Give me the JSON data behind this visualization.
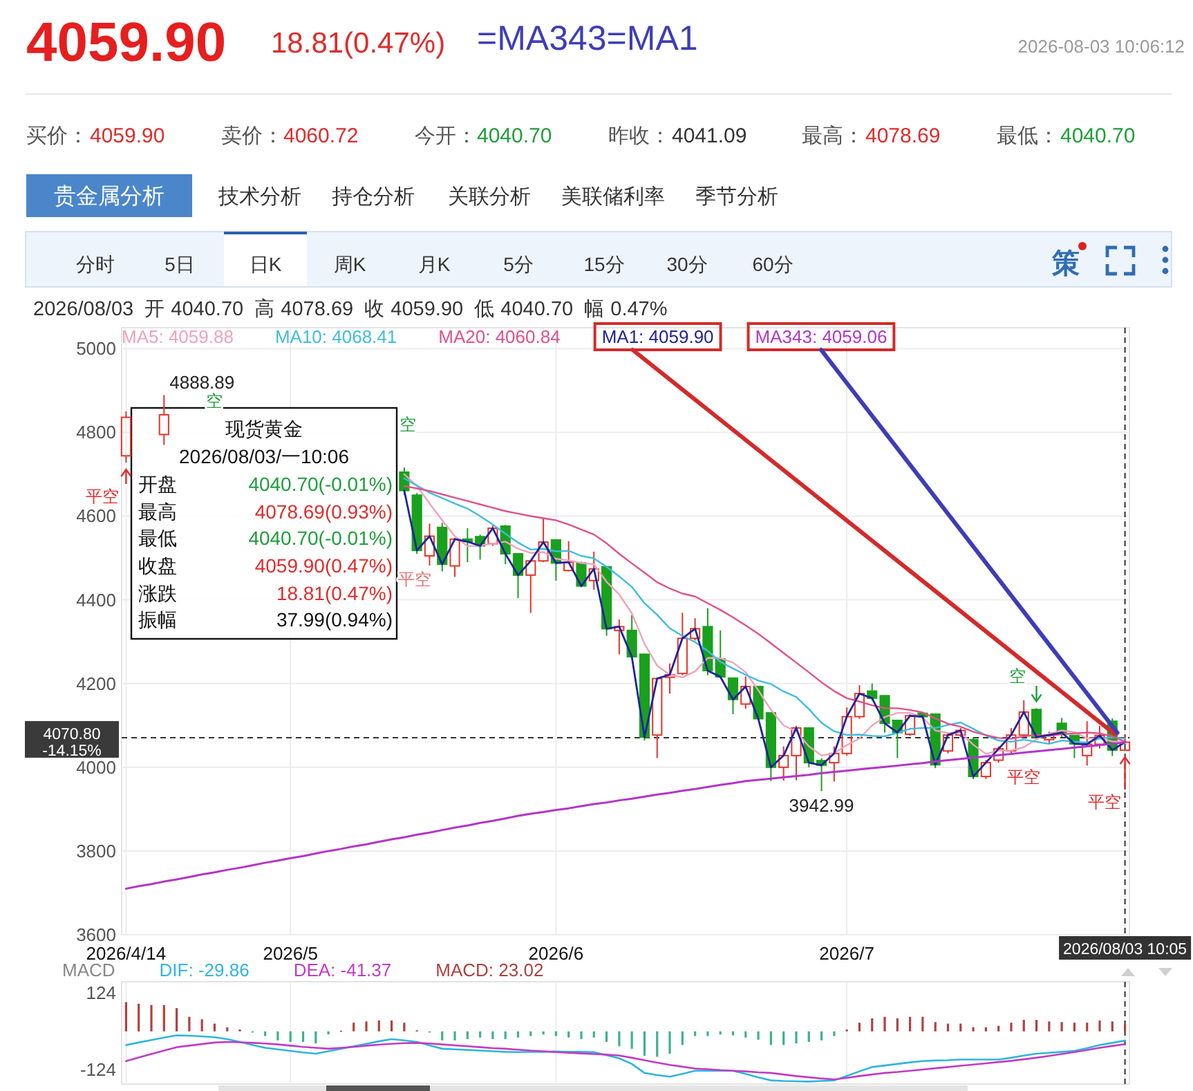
{
  "chart_data": [
    {
      "type": "candlestick",
      "title": "4059.90",
      "subtitle": "18.81(0.47%)",
      "categories": [
        "2026/4/14",
        null,
        null,
        null,
        null,
        null,
        null,
        null,
        null,
        null,
        null,
        null,
        null,
        "2026/5",
        null,
        null,
        null,
        null,
        null,
        null,
        null,
        null,
        null,
        null,
        null,
        null,
        null,
        null,
        null,
        null,
        null,
        null,
        null,
        null,
        "2026/6",
        null,
        null,
        null,
        null,
        null,
        null,
        null,
        null,
        null,
        null,
        null,
        null,
        null,
        null,
        null,
        null,
        null,
        null,
        null,
        null,
        null,
        null,
        "2026/7",
        null,
        null,
        null,
        null,
        null,
        null,
        null,
        null,
        null,
        null,
        null,
        null,
        null,
        null,
        null,
        null,
        null,
        null,
        null,
        null,
        null,
        "2026/08/03 10:05"
      ],
      "ohlc": [
        [
          4744,
          4850,
          4728,
          4836
        ],
        null,
        null,
        [
          4795,
          4888.89,
          4770,
          4842
        ],
        null,
        null,
        null,
        null,
        null,
        null,
        null,
        null,
        null,
        null,
        null,
        null,
        null,
        null,
        null,
        null,
        null,
        null,
        [
          4705,
          4716,
          4650,
          4661
        ],
        [
          4650,
          4655,
          4510,
          4518
        ],
        [
          4505,
          4582,
          4482,
          4552
        ],
        [
          4573,
          4584,
          4468,
          4485
        ],
        [
          4481,
          4548,
          4455,
          4545
        ],
        [
          4545,
          4571,
          4490,
          4539
        ],
        [
          4551,
          4556,
          4496,
          4529
        ],
        [
          4534,
          4578,
          4529,
          4571
        ],
        [
          4576,
          4579,
          4485,
          4510
        ],
        [
          4510,
          4512,
          4404,
          4459
        ],
        [
          4459,
          4495,
          4369,
          4493
        ],
        [
          4493,
          4595,
          4490,
          4538
        ],
        [
          4543,
          4545,
          4446,
          4488
        ],
        [
          4470,
          4540,
          4468,
          4490
        ],
        [
          4488,
          4491,
          4430,
          4433
        ],
        [
          4446,
          4515,
          4424,
          4474
        ],
        [
          4479,
          4480,
          4314,
          4331
        ],
        [
          4327,
          4353,
          4270,
          4336
        ],
        [
          4327,
          4364,
          4259,
          4264
        ],
        [
          4270,
          4271,
          4064,
          4072
        ],
        [
          4077,
          4213,
          4022,
          4212
        ],
        [
          4215,
          4248,
          4176,
          4221
        ],
        [
          4224,
          4369,
          4220,
          4308
        ],
        [
          4308,
          4356,
          4303,
          4331
        ],
        [
          4336,
          4380,
          4220,
          4231
        ],
        [
          4259,
          4327,
          4214,
          4216
        ],
        [
          4213,
          4214,
          4127,
          4162
        ],
        [
          4151,
          4217,
          4140,
          4193
        ],
        [
          4193,
          4194,
          4113,
          4116
        ],
        [
          4130,
          4131,
          3967,
          4000
        ],
        [
          4000,
          4050,
          3968,
          4028
        ],
        [
          4028,
          4099,
          3969,
          4094
        ],
        [
          4094,
          4095,
          4000,
          4011
        ],
        [
          4016,
          4022,
          3942.99,
          4005
        ],
        [
          4011,
          4050,
          3966,
          4033
        ],
        [
          4033,
          4143,
          4028,
          4121
        ],
        [
          4121,
          4196,
          4116,
          4176
        ],
        [
          4182,
          4200,
          4160,
          4165
        ],
        [
          4171,
          4172,
          4083,
          4105
        ],
        [
          4112,
          4113,
          4022,
          4083
        ],
        [
          4079,
          4127,
          4075,
          4123
        ],
        [
          4129,
          4132,
          4118,
          4121
        ],
        [
          4127,
          4128,
          3998,
          4006
        ],
        [
          4039,
          4083,
          4033,
          4077
        ],
        [
          4077,
          4094,
          4072,
          4088
        ],
        [
          4066,
          4072,
          3972,
          3978
        ],
        [
          3978,
          4017,
          3972,
          4011
        ],
        [
          4017,
          4050,
          4011,
          4044
        ],
        [
          4039,
          4094,
          4033,
          4077
        ],
        [
          4077,
          4160,
          4072,
          4132
        ],
        [
          4138,
          4141,
          4072,
          4072
        ],
        [
          4066,
          4085,
          4055,
          4077
        ],
        [
          4105,
          4118,
          4072,
          4083
        ],
        [
          4076,
          4076,
          4022,
          4056
        ],
        [
          4028,
          4110,
          4004,
          4055
        ],
        [
          4055,
          4099,
          4045,
          4076
        ],
        [
          4110,
          4117,
          4027,
          4041.09
        ],
        [
          4040.7,
          4078.69,
          4040.7,
          4059.9
        ]
      ],
      "colors": [
        "#e3352b",
        null,
        null,
        "#e3352b",
        null,
        null,
        null,
        null,
        null,
        null,
        null,
        null,
        null,
        null,
        null,
        null,
        null,
        null,
        null,
        null,
        null,
        null,
        "#19a11e",
        "#19a11e",
        "#e3352b",
        "#19a11e",
        "#e3352b",
        "#19a11e",
        "#19a11e",
        "#e3352b",
        "#19a11e",
        "#19a11e",
        "#e3352b",
        "#e3352b",
        "#19a11e",
        "#e3352b",
        "#19a11e",
        "#e3352b",
        "#19a11e",
        "#e3352b",
        "#19a11e",
        "#19a11e",
        "#e3352b",
        "#e3352b",
        "#e3352b",
        "#e3352b",
        "#19a11e",
        "#19a11e",
        "#19a11e",
        "#e3352b",
        "#19a11e",
        "#19a11e",
        "#e3352b",
        "#e3352b",
        "#19a11e",
        "#19a11e",
        "#e3352b",
        "#e3352b",
        "#e3352b",
        "#19a11e",
        "#19a11e",
        "#19a11e",
        "#e3352b",
        "#19a11e",
        "#19a11e",
        "#e3352b",
        "#e3352b",
        "#19a11e",
        "#e3352b",
        "#e3352b",
        "#e3352b",
        "#e3352b",
        "#19a11e",
        "#e3352b",
        "#19a11e",
        "#19a11e",
        "#e3352b",
        "#e3352b",
        "#19a11e",
        "#e3352b"
      ],
      "series": [
        {
          "name": "MA5: 4059.88",
          "type": "line",
          "color": "#f0a3bc",
          "values": [
            null,
            null,
            null,
            null,
            null,
            null,
            null,
            null,
            null,
            null,
            null,
            null,
            null,
            null,
            null,
            null,
            null,
            null,
            null,
            null,
            null,
            null,
            4700,
            4672,
            4630,
            4590,
            4552,
            4528,
            4530,
            4534,
            4539,
            4522,
            4512,
            4514,
            4498,
            4494,
            4488,
            4485,
            4443,
            4413,
            4368,
            4295,
            4243,
            4221,
            4215,
            4229,
            4261,
            4261,
            4250,
            4227,
            4184,
            4137,
            4100,
            4086,
            4050,
            4028,
            4034,
            4053,
            4069,
            4100,
            4120,
            4130,
            4130,
            4119,
            4088,
            4082,
            4083,
            4054,
            4032,
            4040,
            4040,
            4048,
            4067,
            4080,
            4088,
            4084,
            4069,
            4069,
            4062,
            4059.88
          ]
        },
        {
          "name": "MA10: 4068.41",
          "type": "line",
          "color": "#3fbde0",
          "values": [
            null,
            null,
            null,
            null,
            null,
            null,
            null,
            null,
            null,
            null,
            null,
            null,
            null,
            null,
            null,
            null,
            null,
            null,
            null,
            null,
            null,
            null,
            4690,
            4673,
            4656,
            4643,
            4630,
            4618,
            4600,
            4580,
            4558,
            4537,
            4520,
            4522,
            4516,
            4517,
            4505,
            4499,
            4479,
            4456,
            4431,
            4392,
            4364,
            4332,
            4314,
            4299,
            4278,
            4252,
            4236,
            4221,
            4207,
            4199,
            4181,
            4168,
            4139,
            4106,
            4086,
            4077,
            4078,
            4075,
            4074,
            4082,
            4092,
            4094,
            4094,
            4101,
            4107,
            4092,
            4076,
            4064,
            4061,
            4066,
            4061,
            4056,
            4064,
            4061,
            4059,
            4069,
            4072,
            4068.41
          ]
        },
        {
          "name": "MA20: 4060.84",
          "type": "line",
          "color": "#e2508a",
          "values": [
            null,
            null,
            null,
            null,
            null,
            null,
            null,
            null,
            null,
            null,
            null,
            null,
            null,
            null,
            null,
            null,
            null,
            null,
            null,
            null,
            null,
            null,
            4672,
            4666,
            4660,
            4652,
            4644,
            4636,
            4628,
            4620,
            4612,
            4606,
            4600,
            4595,
            4590,
            4580,
            4568,
            4556,
            4535,
            4510,
            4487,
            4465,
            4442,
            4427,
            4415,
            4408,
            4392,
            4376,
            4358,
            4339,
            4319,
            4296,
            4273,
            4250,
            4227,
            4203,
            4182,
            4165,
            4157,
            4148,
            4141,
            4141,
            4137,
            4131,
            4117,
            4104,
            4097,
            4085,
            4077,
            4070,
            4068,
            4074,
            4077,
            4075,
            4079,
            4081,
            4083,
            4081,
            4074,
            4060.84
          ]
        },
        {
          "name": "MA1: 4059.90",
          "type": "line",
          "color": "#22229c",
          "values": [
            null,
            null,
            null,
            null,
            null,
            null,
            null,
            null,
            null,
            null,
            null,
            null,
            null,
            null,
            null,
            null,
            null,
            null,
            null,
            null,
            null,
            null,
            4661,
            4518,
            4552,
            4485,
            4545,
            4539,
            4529,
            4571,
            4510,
            4459,
            4493,
            4538,
            4488,
            4490,
            4433,
            4474,
            4331,
            4336,
            4264,
            4072,
            4212,
            4221,
            4308,
            4331,
            4231,
            4216,
            4162,
            4193,
            4116,
            4000,
            4028,
            4094,
            4011,
            4005,
            4033,
            4121,
            4176,
            4165,
            4105,
            4083,
            4123,
            4121,
            4006,
            4077,
            4088,
            3978,
            4011,
            4044,
            4077,
            4132,
            4072,
            4077,
            4083,
            4056,
            4055,
            4076,
            4041.09,
            4059.9
          ]
        },
        {
          "name": "MA343: 4059.06",
          "type": "line",
          "color": "#b236c8",
          "values": [
            3710,
            3716,
            3721,
            3727,
            3732,
            3738,
            3744,
            3749,
            3755,
            3760,
            3766,
            3772,
            3777,
            3783,
            3788,
            3794,
            3800,
            3805,
            3811,
            3816,
            3822,
            3828,
            3833,
            3839,
            3844,
            3850,
            3856,
            3861,
            3867,
            3872,
            3878,
            3884,
            3889,
            3893,
            3898,
            3902,
            3907,
            3912,
            3916,
            3921,
            3925,
            3930,
            3935,
            3939,
            3944,
            3948,
            3953,
            3958,
            3962,
            3967,
            3970,
            3973,
            3976,
            3979,
            3982,
            3986,
            3989,
            3992,
            3995,
            3998,
            4001,
            4004,
            4007,
            4010,
            4014,
            4017,
            4020,
            4023,
            4026,
            4029,
            4032,
            4035,
            4038,
            4041,
            4044,
            4047,
            4050,
            4053,
            4056,
            4059.06
          ]
        }
      ],
      "ylim": [
        3600,
        5050
      ],
      "yticks": [
        3600,
        3800,
        4000,
        4200,
        4400,
        4600,
        4800,
        5000
      ],
      "grid": true,
      "legend": "top left",
      "ref_lines": [
        {
          "axis": "y",
          "value": 4070.8,
          "label": "4070.80",
          "line_style": "dashed",
          "color": "#333333"
        },
        {
          "axis": "x",
          "value": "2026/08/03 10:05",
          "line_style": "dashed",
          "color": "#333333"
        }
      ],
      "annotations": [
        "=MA343=MA1",
        "2026-08-03 10:06:12",
        "买价：",
        "4059.90",
        "卖价：",
        "4060.72",
        "今开：",
        "4040.70",
        "昨收：",
        "4041.09",
        "最高：",
        "4078.69",
        "最低：",
        "4040.70",
        "贵金属分析",
        "技术分析",
        "持仓分析",
        "关联分析",
        "美联储利率",
        "季节分析",
        "分时",
        "5日",
        "日K",
        "周K",
        "月K",
        "5分",
        "15分",
        "30分",
        "60分",
        "策",
        "2026/08/03  开 4040.70  高 4078.69  收 4059.90  低 4040.70  幅 0.47%",
        "现货黄金",
        "2026/08/03/一10:06",
        "开盘",
        "4040.70(-0.01%)",
        "最高",
        "4078.69(0.93%)",
        "最低",
        "4040.70(-0.01%)",
        "收盘",
        "4059.90(0.47%)",
        "涨跌",
        "18.81(0.47%)",
        "振幅",
        "37.99(0.94%)",
        "-14.15%",
        {
          "text": "空",
          "y": 4141
        },
        "平空",
        {
          "text": "平空",
          "y": 4040.7
        },
        "空",
        "平空",
        "空",
        "平空",
        "4888.89",
        "3942.99"
      ]
    },
    {
      "type": "bar",
      "legend_title": "MACD",
      "categories": [
        "2026/4/14",
        null,
        null,
        null,
        null,
        null,
        null,
        null,
        null,
        null,
        null,
        null,
        null,
        "2026/5",
        null,
        null,
        null,
        null,
        null,
        null,
        null,
        null,
        null,
        null,
        null,
        null,
        null,
        null,
        null,
        null,
        null,
        null,
        null,
        null,
        "2026/6",
        null,
        null,
        null,
        null,
        null,
        null,
        null,
        null,
        null,
        null,
        null,
        null,
        null,
        null,
        null,
        null,
        null,
        null,
        null,
        null,
        null,
        null,
        "2026/7",
        null,
        null,
        null,
        null,
        null,
        null,
        null,
        null,
        null,
        null,
        null,
        null,
        null,
        null,
        null,
        null,
        null,
        null,
        null,
        null,
        null,
        "2026/08/03 10:05"
      ],
      "series": [
        {
          "name": "DIF: -29.86",
          "type": "line",
          "color": "#2fb5de",
          "values": [
            -44,
            -36,
            -28,
            -20,
            -13,
            -14,
            -16,
            -19,
            -25,
            -34,
            -44,
            -53,
            -58,
            -63,
            -68,
            -72,
            -64,
            -56,
            -48,
            -40,
            -32,
            -25,
            -29,
            -34,
            -45,
            -56,
            -58,
            -60,
            -62,
            -64,
            -66,
            -67,
            -66,
            -66,
            -65,
            -66,
            -66,
            -67,
            -77,
            -87,
            -105,
            -134,
            -141,
            -146,
            -137,
            -127,
            -127,
            -127,
            -127,
            -137,
            -148,
            -158,
            -160,
            -161,
            -162,
            -160,
            -158,
            -144,
            -129,
            -115,
            -110,
            -105,
            -100,
            -96,
            -94,
            -93,
            -91,
            -91,
            -91,
            -91,
            -85,
            -78,
            -72,
            -69,
            -66,
            -63,
            -54,
            -44,
            -37,
            -29.86
          ]
        },
        {
          "name": "DEA: -41.37",
          "type": "line",
          "color": "#c03cc4",
          "values": [
            -96,
            -84,
            -73,
            -62,
            -51,
            -46,
            -41,
            -36,
            -34,
            -35,
            -37,
            -39,
            -42,
            -46,
            -50,
            -53,
            -56,
            -53,
            -50,
            -46,
            -43,
            -40,
            -38,
            -37,
            -39,
            -42,
            -45,
            -48,
            -51,
            -54,
            -56,
            -59,
            -62,
            -64,
            -67,
            -69,
            -71,
            -73,
            -75,
            -78,
            -85,
            -93,
            -101,
            -108,
            -114,
            -120,
            -122,
            -125,
            -127,
            -129,
            -132,
            -134,
            -139,
            -144,
            -148,
            -152,
            -155,
            -150,
            -144,
            -139,
            -134,
            -131,
            -127,
            -123,
            -119,
            -115,
            -111,
            -107,
            -103,
            -99,
            -95,
            -90,
            -85,
            -79,
            -73,
            -67,
            -60,
            -53,
            -47,
            -41.37
          ]
        },
        {
          "name": "MACD: 23.02",
          "type": "bar",
          "color": "#b0413e",
          "values": [
            94,
            89,
            85,
            85,
            75,
            47,
            39,
            25,
            13,
            6,
            -3,
            -15,
            -29,
            -34,
            -34,
            -39,
            -10,
            2,
            28,
            32,
            35,
            35,
            28,
            3,
            -3,
            -29,
            -29,
            -25,
            -20,
            -25,
            -25,
            -20,
            -15,
            -10,
            -15,
            -20,
            -25,
            -20,
            -34,
            -48,
            -56,
            -79,
            -82,
            -72,
            -44,
            -15,
            -15,
            -10,
            -13,
            -20,
            -27,
            -44,
            -44,
            -39,
            -34,
            -29,
            -15,
            6,
            28,
            42,
            47,
            42,
            47,
            47,
            30,
            25,
            25,
            13,
            13,
            18,
            28,
            37,
            37,
            32,
            30,
            28,
            28,
            35,
            32,
            23.02
          ],
          "colors": [
            "#b0413e",
            "#b0413e",
            "#b0413e",
            "#b0413e",
            "#b0413e",
            "#b0413e",
            "#b0413e",
            "#b0413e",
            "#b0413e",
            "#b0413e",
            "#3cb38a",
            "#3cb38a",
            "#3cb38a",
            "#3cb38a",
            "#3cb38a",
            "#3cb38a",
            "#3cb38a",
            "#b0413e",
            "#b0413e",
            "#b0413e",
            "#b0413e",
            "#b0413e",
            "#b0413e",
            "#b0413e",
            "#3cb38a",
            "#3cb38a",
            "#3cb38a",
            "#3cb38a",
            "#3cb38a",
            "#3cb38a",
            "#3cb38a",
            "#3cb38a",
            "#3cb38a",
            "#3cb38a",
            "#3cb38a",
            "#3cb38a",
            "#3cb38a",
            "#3cb38a",
            "#3cb38a",
            "#3cb38a",
            "#3cb38a",
            "#3cb38a",
            "#3cb38a",
            "#3cb38a",
            "#3cb38a",
            "#3cb38a",
            "#3cb38a",
            "#3cb38a",
            "#3cb38a",
            "#3cb38a",
            "#3cb38a",
            "#3cb38a",
            "#3cb38a",
            "#3cb38a",
            "#3cb38a",
            "#3cb38a",
            "#3cb38a",
            "#b0413e",
            "#b0413e",
            "#b0413e",
            "#b0413e",
            "#b0413e",
            "#b0413e",
            "#b0413e",
            "#b0413e",
            "#b0413e",
            "#b0413e",
            "#b0413e",
            "#b0413e",
            "#b0413e",
            "#b0413e",
            "#b0413e",
            "#b0413e",
            "#b0413e",
            "#b0413e",
            "#b0413e",
            "#b0413e",
            "#b0413e",
            "#b0413e",
            "#b0413e"
          ]
        }
      ],
      "ylim": [
        -170,
        160
      ],
      "yticks": [
        -124,
        124
      ],
      "grid": "x",
      "legend": "top left",
      "tick_labels": "y",
      "ref_lines": [
        {
          "axis": "x",
          "value": "2026/08/03 10:05",
          "line_style": "dashed",
          "color": "#333333"
        }
      ]
    }
  ]
}
